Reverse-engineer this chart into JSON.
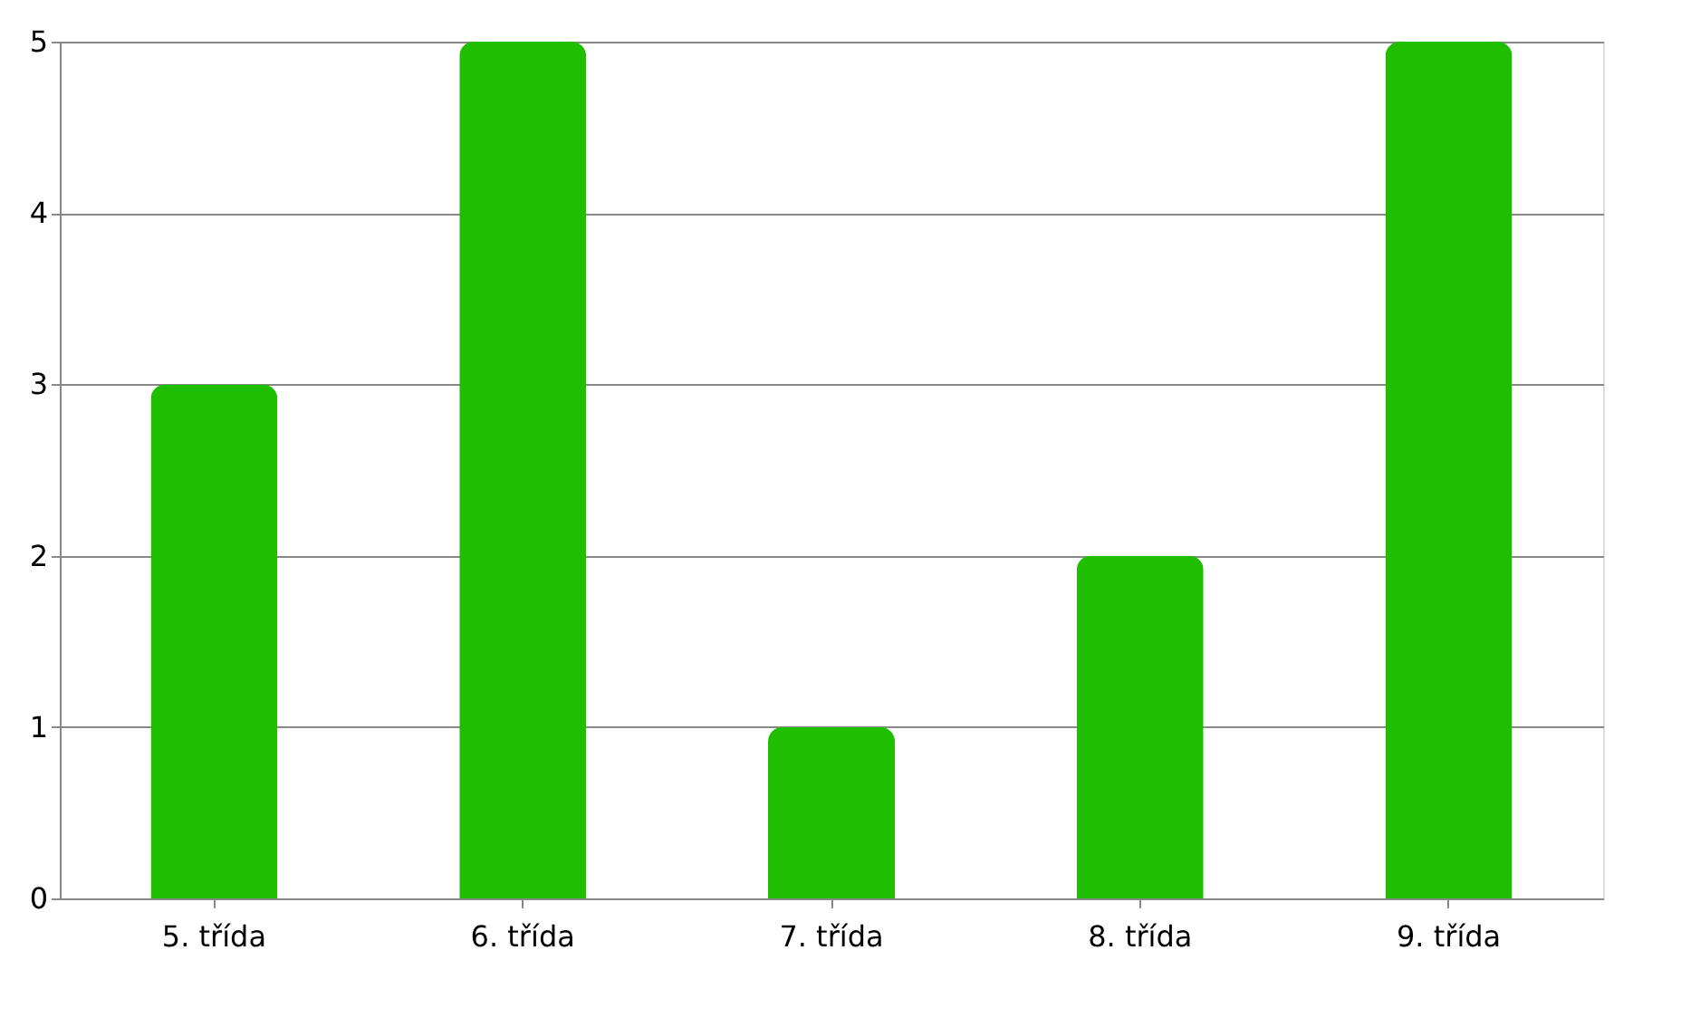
{
  "chart_data": {
    "type": "bar",
    "categories": [
      "5. třída",
      "6. třída",
      "7. třída",
      "8. třída",
      "9. třída"
    ],
    "values": [
      3,
      5,
      1,
      2,
      5
    ],
    "color": "#1fbf00",
    "ylim": [
      0,
      5
    ],
    "yticks": [
      0,
      1,
      2,
      3,
      4,
      5
    ],
    "grid": "y"
  }
}
